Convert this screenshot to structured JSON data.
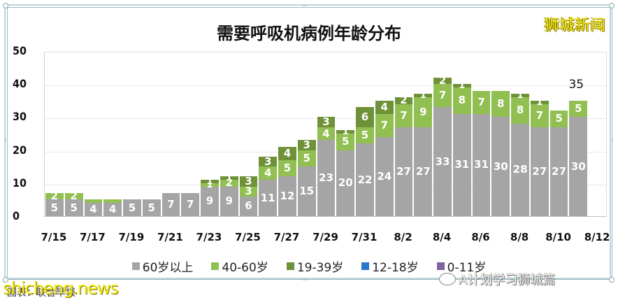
{
  "header": {
    "title": "需要呼吸机病例年龄分布",
    "brand_watermark": "狮城新闻"
  },
  "footer": {
    "site_watermark": "shicheng.news",
    "caption": "图表：联合早报",
    "wechat_watermark": "A计划学习狮城篇"
  },
  "colors": {
    "60_plus": "#a5a5a5",
    "40_60": "#92bf52",
    "19_39": "#6f9138",
    "12_18": "#2a78c8",
    "0_11": "#8064a2",
    "brand_yellow": "#f5ef1e"
  },
  "legend": [
    {
      "label": "60岁以上",
      "color": "#a5a5a5"
    },
    {
      "label": "40-60岁",
      "color": "#92bf52"
    },
    {
      "label": "19-39岁",
      "color": "#6f9138"
    },
    {
      "label": "12-18岁",
      "color": "#2a78c8"
    },
    {
      "label": "0-11岁",
      "color": "#8064a2"
    }
  ],
  "chart_data": {
    "type": "bar",
    "stacked": true,
    "title": "需要呼吸机病例年龄分布",
    "xlabel": "",
    "ylabel": "",
    "ylim": [
      0,
      50
    ],
    "yticks": [
      0,
      10,
      20,
      30,
      40,
      50
    ],
    "xtick_labels": [
      "7/15",
      "7/17",
      "7/19",
      "7/21",
      "7/23",
      "7/25",
      "7/27",
      "7/29",
      "7/31",
      "8/2",
      "8/4",
      "8/6",
      "8/8",
      "8/10",
      "8/12"
    ],
    "grid": true,
    "legend_position": "bottom",
    "categories": [
      "7/15",
      "7/16",
      "7/17",
      "7/18",
      "7/19",
      "7/20",
      "7/21",
      "7/22",
      "7/23",
      "7/24",
      "7/25",
      "7/26",
      "7/27",
      "7/28",
      "7/29",
      "7/30",
      "7/31",
      "8/1",
      "8/2",
      "8/3",
      "8/4",
      "8/5",
      "8/6",
      "8/7",
      "8/8",
      "8/9",
      "8/10",
      "8/11",
      "8/12"
    ],
    "series": [
      {
        "name": "60岁以上",
        "color": "#a5a5a5",
        "values": [
          5,
          5,
          4,
          4,
          5,
          5,
          7,
          7,
          9,
          9,
          6,
          11,
          12,
          15,
          23,
          20,
          22,
          24,
          27,
          27,
          33,
          31,
          31,
          30,
          28,
          27,
          27,
          30,
          0
        ]
      },
      {
        "name": "40-60岁",
        "color": "#92bf52",
        "values": [
          2,
          2,
          1,
          1,
          0,
          0,
          0,
          0,
          1,
          2,
          3,
          4,
          5,
          5,
          4,
          5,
          5,
          7,
          7,
          9,
          7,
          8,
          7,
          8,
          8,
          7,
          5,
          5,
          0
        ]
      },
      {
        "name": "19-39岁",
        "color": "#6f9138",
        "values": [
          0,
          0,
          0,
          0,
          0,
          0,
          0,
          0,
          1,
          1,
          3,
          3,
          4,
          3,
          3,
          1,
          6,
          4,
          2,
          1,
          2,
          1,
          0,
          0,
          1,
          1,
          0,
          0,
          0
        ]
      },
      {
        "name": "12-18岁",
        "color": "#2a78c8",
        "values": [
          0,
          0,
          0,
          0,
          0,
          0,
          0,
          0,
          0,
          0,
          0,
          0,
          0,
          0,
          0,
          0,
          0,
          0,
          0,
          0,
          0,
          0,
          0,
          0,
          0,
          0,
          0,
          0,
          0
        ]
      },
      {
        "name": "0-11岁",
        "color": "#8064a2",
        "values": [
          0,
          0,
          0,
          0,
          0,
          0,
          0,
          0,
          0,
          0,
          0,
          0,
          0,
          0,
          0,
          0,
          0,
          0,
          0,
          0,
          0,
          0,
          0,
          0,
          0,
          0,
          0,
          0,
          0
        ]
      }
    ],
    "annotations": [
      {
        "category": "8/11",
        "text": "35"
      }
    ],
    "label_threshold": 2
  }
}
